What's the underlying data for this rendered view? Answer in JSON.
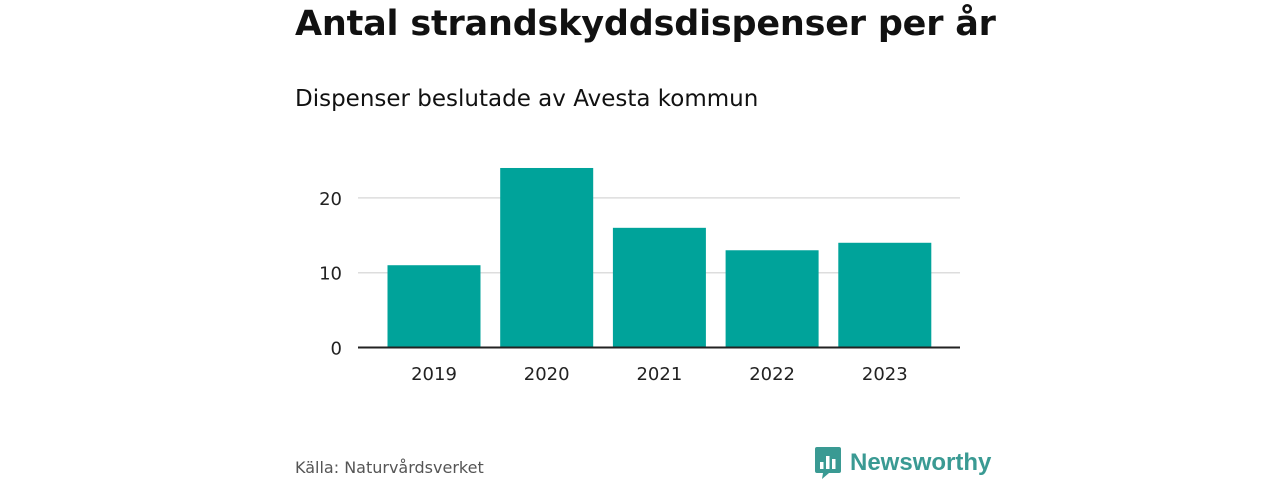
{
  "chart_data": {
    "type": "bar",
    "title": "Antal strandskyddsdispenser per år",
    "subtitle": "Dispenser beslutade av Avesta kommun",
    "categories": [
      "2019",
      "2020",
      "2021",
      "2022",
      "2023"
    ],
    "values": [
      11,
      24,
      16,
      13,
      14
    ],
    "xlabel": "",
    "ylabel": "",
    "ylim": [
      0,
      24
    ],
    "yticks": [
      0,
      10,
      20
    ],
    "grid": true,
    "bar_color": "#00a39a"
  },
  "footer": {
    "source": "Källa: Naturvårdsverket",
    "brand": "Newsworthy",
    "brand_color": "#3a9a93",
    "brand_icon": "bar-chart-badge-icon"
  }
}
